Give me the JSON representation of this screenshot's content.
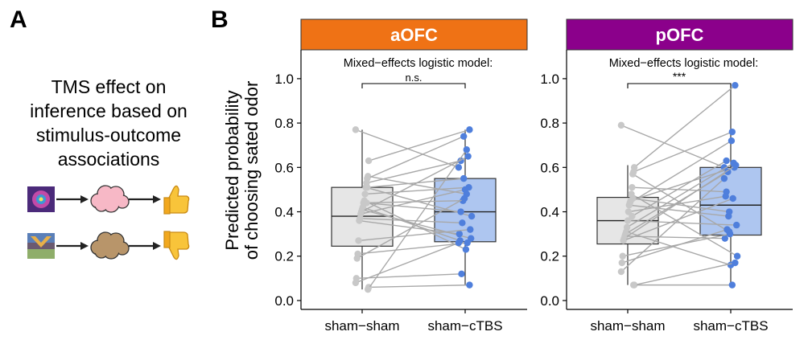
{
  "panel_labels": {
    "a": "A",
    "b": "B"
  },
  "schematic": {
    "title_lines": [
      "TMS effect on",
      "inference based on",
      "stimulus-outcome",
      "associations"
    ],
    "rows": [
      {
        "cloud_color": "#f7b8c6",
        "outcome": "thumbs-up-icon"
      },
      {
        "cloud_color": "#b8956a",
        "outcome": "thumbs-down-icon"
      }
    ]
  },
  "chart_data": {
    "type": "box-with-paired-points",
    "ylabel_lines": [
      "Predicted probability",
      "of choosing sated odor"
    ],
    "ylim": [
      -0.04,
      1.13
    ],
    "yticks": [
      "0.0",
      "0.2",
      "0.4",
      "0.6",
      "0.8",
      "1.0"
    ],
    "categories": [
      "sham−sham",
      "sham−cTBS"
    ],
    "colors": {
      "sham": "#e6e6e6",
      "ctbs": "#aec6f0",
      "sham_point": "#c8c8c8",
      "ctbs_point": "#4f7fdc",
      "line": "#a8a8a8"
    },
    "facets": [
      {
        "name": "aOFC",
        "strip_color": "#ef7215",
        "annotation": "Mixed−effects logistic model:",
        "significance": "n.s.",
        "boxes": [
          {
            "q1": 0.245,
            "median": 0.38,
            "q3": 0.51,
            "whisker_low": 0.05,
            "whisker_high": 0.77
          },
          {
            "q1": 0.265,
            "median": 0.4,
            "q3": 0.55,
            "whisker_low": 0.07,
            "whisker_high": 0.77
          }
        ],
        "pairs": [
          [
            0.77,
            0.6
          ],
          [
            0.63,
            0.77
          ],
          [
            0.56,
            0.48
          ],
          [
            0.55,
            0.74
          ],
          [
            0.53,
            0.63
          ],
          [
            0.51,
            0.38
          ],
          [
            0.48,
            0.51
          ],
          [
            0.45,
            0.23
          ],
          [
            0.44,
            0.45
          ],
          [
            0.42,
            0.27
          ],
          [
            0.41,
            0.28
          ],
          [
            0.4,
            0.65
          ],
          [
            0.39,
            0.5
          ],
          [
            0.37,
            0.35
          ],
          [
            0.36,
            0.3
          ],
          [
            0.27,
            0.32
          ],
          [
            0.21,
            0.26
          ],
          [
            0.19,
            0.46
          ],
          [
            0.1,
            0.12
          ],
          [
            0.08,
            0.26
          ],
          [
            0.06,
            0.07
          ],
          [
            0.05,
            0.68
          ],
          [
            0.51,
            0.55
          ],
          [
            0.44,
            0.4
          ]
        ]
      },
      {
        "name": "pOFC",
        "strip_color": "#8b008b",
        "annotation": "Mixed−effects logistic model:",
        "significance": "***",
        "boxes": [
          {
            "q1": 0.255,
            "median": 0.36,
            "q3": 0.465,
            "whisker_low": 0.07,
            "whisker_high": 0.61
          },
          {
            "q1": 0.295,
            "median": 0.43,
            "q3": 0.6,
            "whisker_low": 0.07,
            "whisker_high": 0.96
          }
        ],
        "pairs": [
          [
            0.79,
            0.6
          ],
          [
            0.6,
            0.97
          ],
          [
            0.58,
            0.76
          ],
          [
            0.57,
            0.31
          ],
          [
            0.51,
            0.49
          ],
          [
            0.48,
            0.2
          ],
          [
            0.45,
            0.6
          ],
          [
            0.44,
            0.72
          ],
          [
            0.43,
            0.38
          ],
          [
            0.4,
            0.47
          ],
          [
            0.36,
            0.34
          ],
          [
            0.33,
            0.62
          ],
          [
            0.31,
            0.16
          ],
          [
            0.3,
            0.58
          ],
          [
            0.29,
            0.28
          ],
          [
            0.28,
            0.61
          ],
          [
            0.27,
            0.46
          ],
          [
            0.2,
            0.3
          ],
          [
            0.17,
            0.32
          ],
          [
            0.13,
            0.55
          ],
          [
            0.07,
            0.17
          ],
          [
            0.07,
            0.07
          ],
          [
            0.46,
            0.4
          ],
          [
            0.38,
            0.63
          ]
        ]
      }
    ]
  }
}
